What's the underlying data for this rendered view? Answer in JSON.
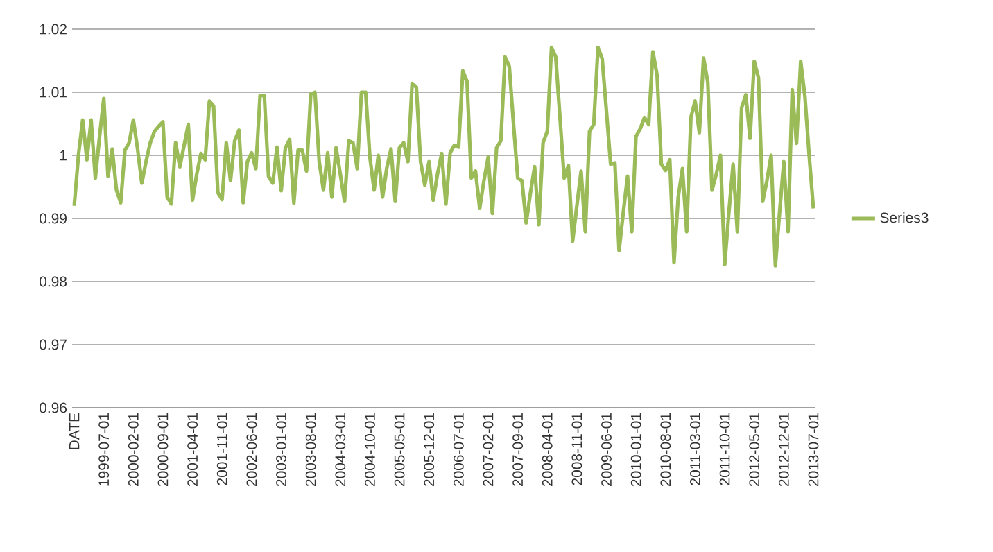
{
  "chart_data": {
    "type": "line",
    "legend": "right",
    "grid": "y",
    "ylim": [
      0.96,
      1.02
    ],
    "yticks": [
      0.96,
      0.97,
      0.98,
      0.99,
      1,
      1.01,
      1.02
    ],
    "categories": [
      "DATE",
      null,
      null,
      null,
      null,
      null,
      null,
      "1999-07-01",
      null,
      null,
      null,
      null,
      null,
      null,
      "2000-02-01",
      null,
      null,
      null,
      null,
      null,
      null,
      "2000-09-01",
      null,
      null,
      null,
      null,
      null,
      null,
      "2001-04-01",
      null,
      null,
      null,
      null,
      null,
      null,
      "2001-11-01",
      null,
      null,
      null,
      null,
      null,
      null,
      "2002-06-01",
      null,
      null,
      null,
      null,
      null,
      null,
      "2003-01-01",
      null,
      null,
      null,
      null,
      null,
      null,
      "2003-08-01",
      null,
      null,
      null,
      null,
      null,
      null,
      "2004-03-01",
      null,
      null,
      null,
      null,
      null,
      null,
      "2004-10-01",
      null,
      null,
      null,
      null,
      null,
      null,
      "2005-05-01",
      null,
      null,
      null,
      null,
      null,
      null,
      "2005-12-01",
      null,
      null,
      null,
      null,
      null,
      null,
      "2006-07-01",
      null,
      null,
      null,
      null,
      null,
      null,
      "2007-02-01",
      null,
      null,
      null,
      null,
      null,
      null,
      "2007-09-01",
      null,
      null,
      null,
      null,
      null,
      null,
      "2008-04-01",
      null,
      null,
      null,
      null,
      null,
      null,
      "2008-11-01",
      null,
      null,
      null,
      null,
      null,
      null,
      "2009-06-01",
      null,
      null,
      null,
      null,
      null,
      null,
      "2010-01-01",
      null,
      null,
      null,
      null,
      null,
      null,
      "2010-08-01",
      null,
      null,
      null,
      null,
      null,
      null,
      "2011-03-01",
      null,
      null,
      null,
      null,
      null,
      null,
      "2011-10-01",
      null,
      null,
      null,
      null,
      null,
      null,
      "2012-05-01",
      null,
      null,
      null,
      null,
      null,
      null,
      "2012-12-01",
      null,
      null,
      null,
      null,
      null,
      null,
      "2013-07-01"
    ],
    "series": [
      {
        "name": "Series3",
        "color": "#9bbb59",
        "values": [
          0.992,
          1.0,
          1.0056,
          0.9993,
          1.0056,
          0.9964,
          1.003,
          1.009,
          0.9967,
          1.001,
          0.9945,
          0.9925,
          1.0008,
          1.002,
          1.0056,
          1.001,
          0.9956,
          0.999,
          1.002,
          1.0038,
          1.0046,
          1.0053,
          0.9934,
          0.9923,
          1.002,
          0.9982,
          1.0015,
          1.0049,
          0.9929,
          0.997,
          1.0003,
          0.9993,
          1.0086,
          1.0078,
          0.9941,
          0.993,
          1.002,
          0.996,
          1.0023,
          1.004,
          0.9925,
          0.999,
          1.0004,
          0.9979,
          1.0095,
          1.0095,
          0.9967,
          0.9956,
          1.0013,
          0.9944,
          1.0012,
          1.0025,
          0.9924,
          1.0008,
          1.0008,
          0.9975,
          1.0097,
          1.01,
          0.999,
          0.9945,
          1.0004,
          0.9934,
          1.0012,
          0.997,
          0.9927,
          1.0023,
          1.002,
          0.9979,
          1.01,
          1.01,
          0.9997,
          0.9945,
          1.0,
          0.9934,
          0.998,
          1.001,
          0.9927,
          1.0012,
          1.002,
          0.999,
          1.0114,
          1.0108,
          0.999,
          0.9953,
          0.999,
          0.9929,
          0.997,
          1.0003,
          0.9923,
          1.0004,
          1.0016,
          1.0013,
          1.0134,
          1.0117,
          0.9964,
          0.9975,
          0.9916,
          0.996,
          0.9997,
          0.9908,
          1.0012,
          1.0023,
          1.0156,
          1.0141,
          1.005,
          0.9964,
          0.996,
          0.9893,
          0.994,
          0.9982,
          0.989,
          1.002,
          1.0038,
          1.0171,
          1.0156,
          1.006,
          0.9964,
          0.9984,
          0.9864,
          0.992,
          0.9975,
          0.9879,
          1.0038,
          1.0049,
          1.0171,
          1.0153,
          1.007,
          0.9986,
          0.9988,
          0.9849,
          0.991,
          0.9967,
          0.9879,
          1.003,
          1.0042,
          1.006,
          1.0049,
          1.0164,
          1.0127,
          0.9986,
          0.9976,
          0.9993,
          0.983,
          0.9934,
          0.9979,
          0.9879,
          1.006,
          1.0086,
          1.0036,
          1.0154,
          1.0116,
          0.9945,
          0.997,
          1.0,
          0.9827,
          0.991,
          0.9986,
          0.9879,
          1.0075,
          1.0096,
          1.0027,
          1.0149,
          1.0123,
          0.9927,
          0.996,
          1.0,
          0.9825,
          0.991,
          0.999,
          0.9879,
          1.0104,
          1.0019,
          1.0149,
          1.0093,
          1.0,
          0.9916
        ]
      }
    ]
  }
}
